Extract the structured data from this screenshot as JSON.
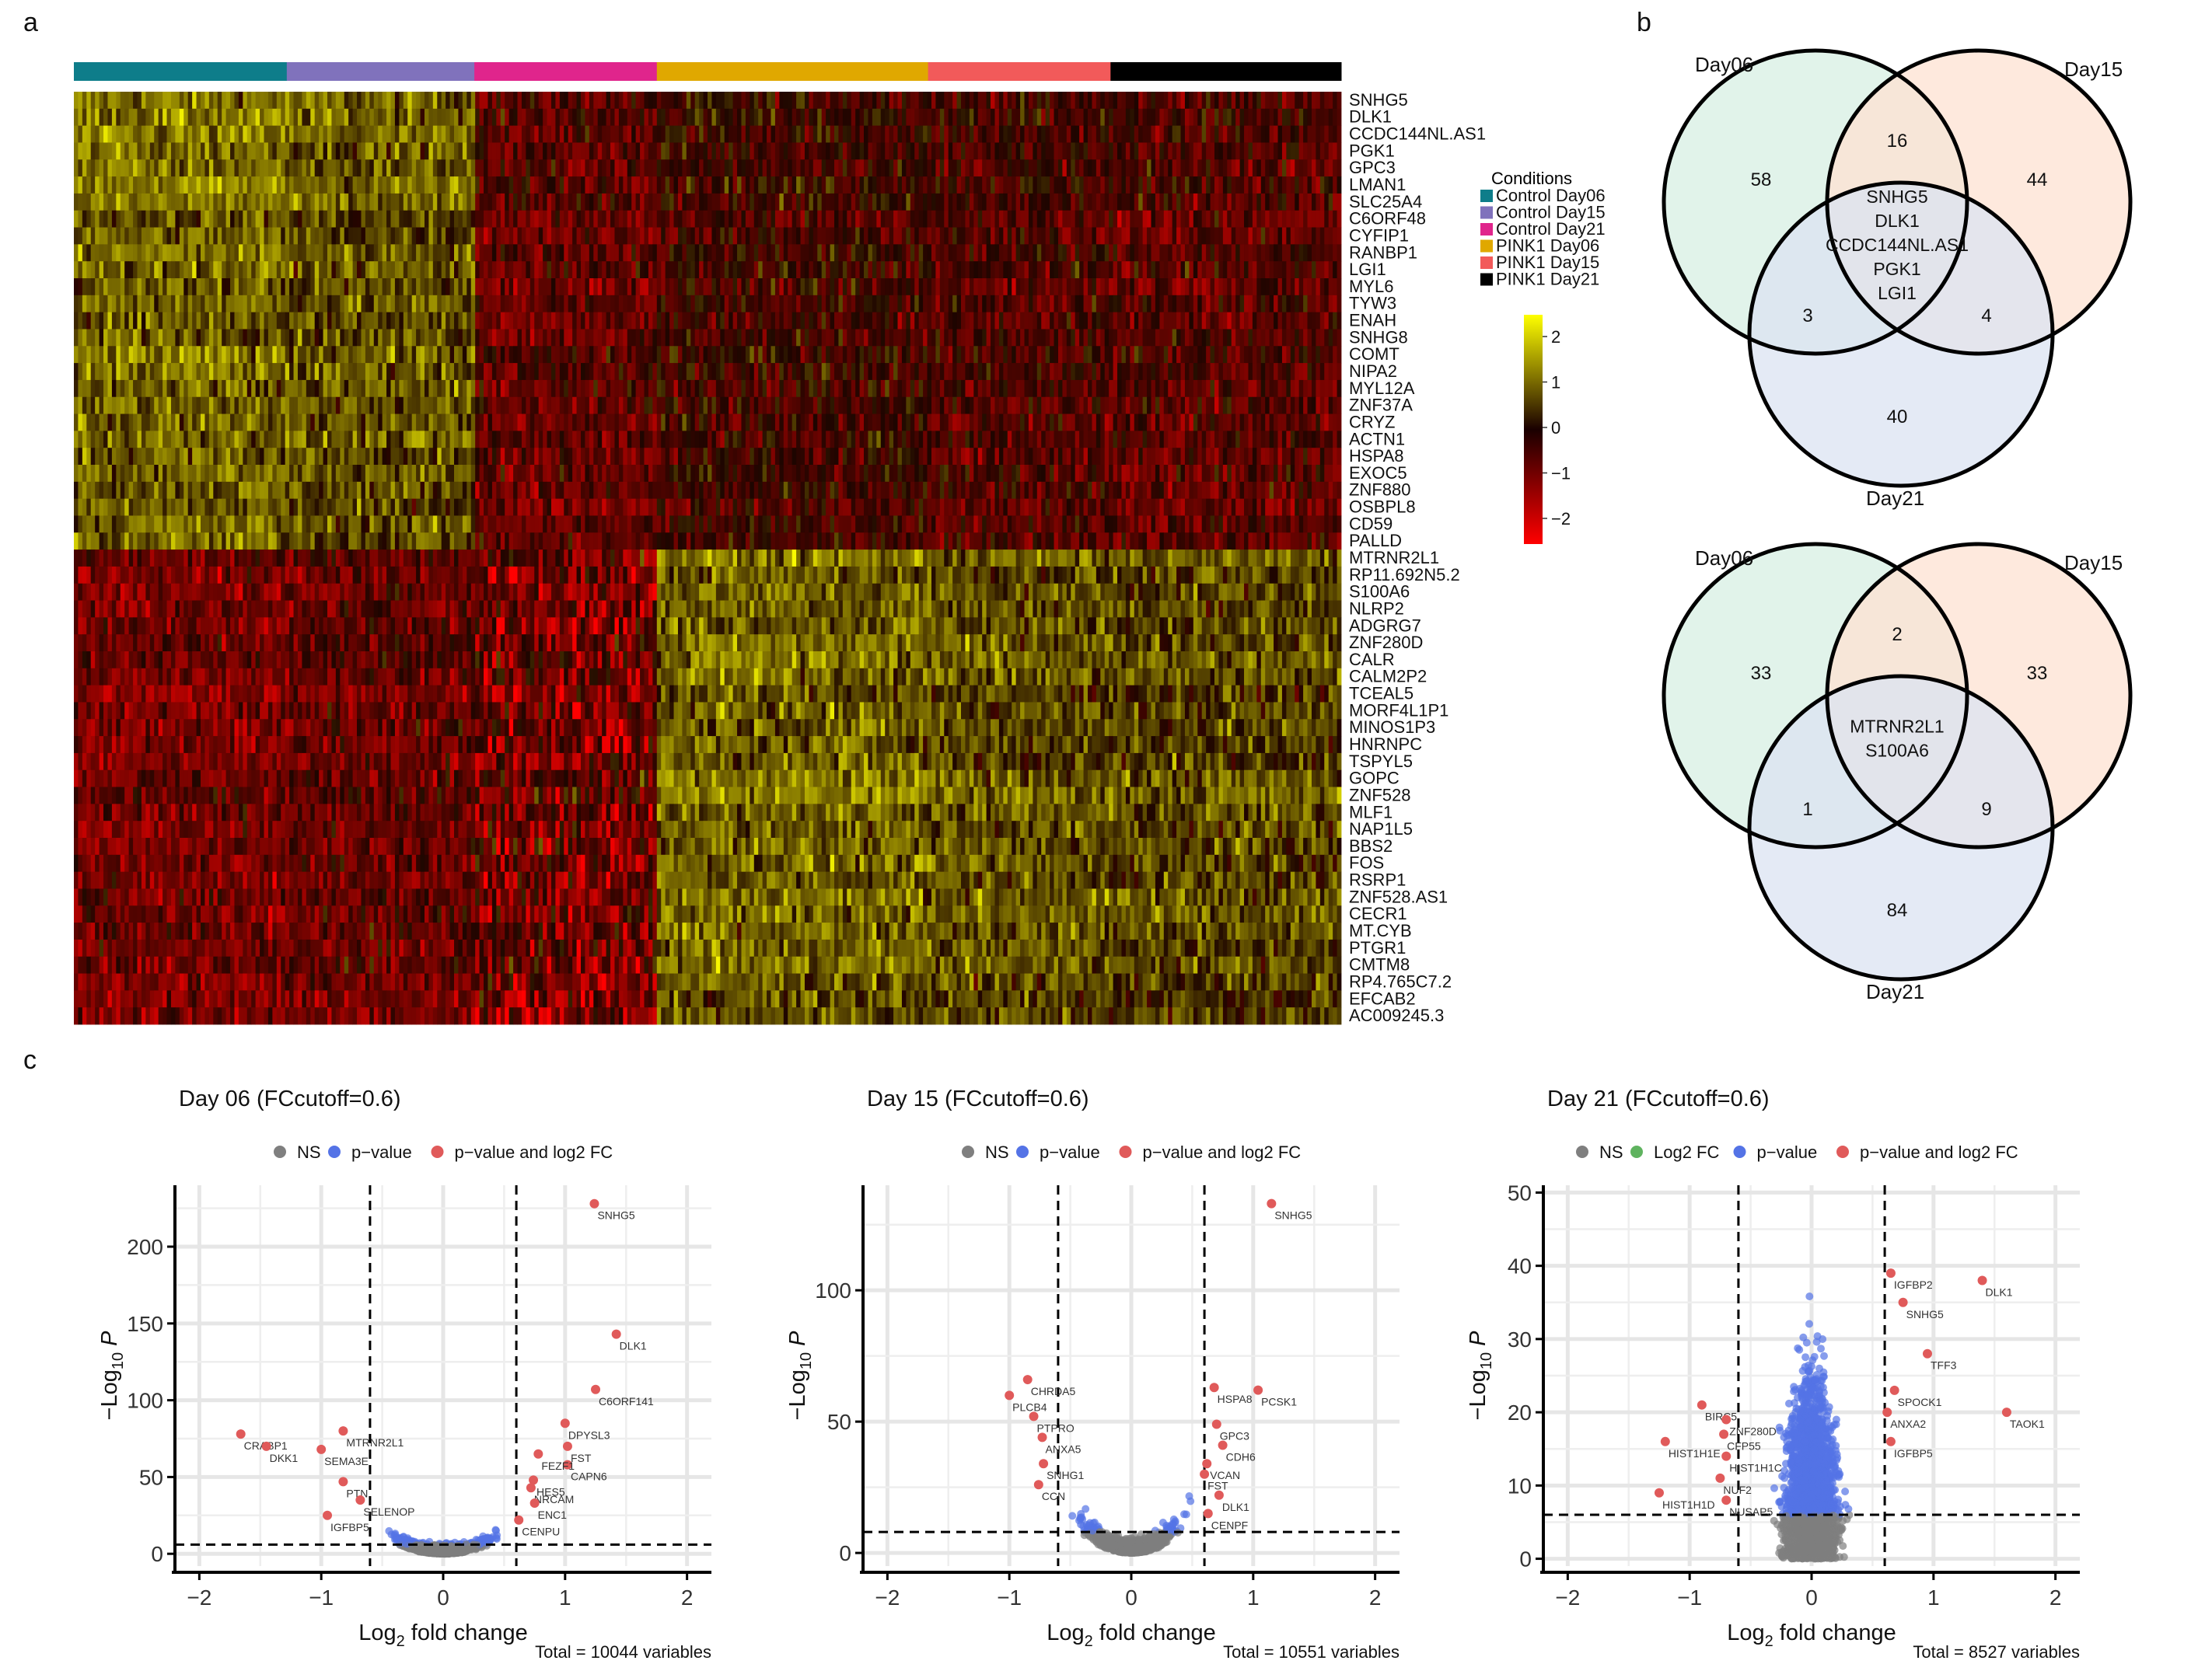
{
  "panels": {
    "a": "a",
    "b": "b",
    "c": "c"
  },
  "colors": {
    "conditions": [
      "#0e7d8a",
      "#8072bc",
      "#e0258c",
      "#e0a800",
      "#f25a5a",
      "#000000"
    ],
    "heat_low": "#ff0000",
    "heat_mid": "#1a0000",
    "heat_high": "#ffff00",
    "venn_day06": "#d7efe3",
    "venn_day15": "#fde2d2",
    "venn_day21": "#dbe3f2",
    "ns": "#7f7f7f",
    "pvalue": "#5473e6",
    "pvalue_fc": "#e05a5a",
    "log2fc": "#5fb35f"
  },
  "heatmap": {
    "legend_title": "Conditions",
    "conditions": [
      "Control Day06",
      "Control Day15",
      "Control Day21",
      "PINK1 Day06",
      "PINK1 Day15",
      "PINK1 Day21"
    ],
    "condition_fraction": [
      0.168,
      0.148,
      0.144,
      0.214,
      0.144,
      0.182
    ],
    "colorbar_ticks": [
      "2",
      "1",
      "0",
      "−1",
      "−2"
    ],
    "genes": [
      "SNHG5",
      "DLK1",
      "CCDC144NL.AS1",
      "PGK1",
      "GPC3",
      "LMAN1",
      "SLC25A4",
      "C6ORF48",
      "CYFIP1",
      "RANBP1",
      "LGI1",
      "MYL6",
      "TYW3",
      "ENAH",
      "SNHG8",
      "COMT",
      "NIPA2",
      "MYL12A",
      "ZNF37A",
      "CRYZ",
      "ACTN1",
      "HSPA8",
      "EXOC5",
      "ZNF880",
      "OSBPL8",
      "CD59",
      "PALLD",
      "MTRNR2L1",
      "RP11.692N5.2",
      "S100A6",
      "NLRP2",
      "ADGRG7",
      "ZNF280D",
      "CALR",
      "CALM2P2",
      "TCEAL5",
      "MORF4L1P1",
      "MINOS1P3",
      "HNRNPC",
      "TSPYL5",
      "GOPC",
      "ZNF528",
      "MLF1",
      "NAP1L5",
      "BBS2",
      "FOS",
      "RSRP1",
      "ZNF528.AS1",
      "CECR1",
      "MT.CYB",
      "PTGR1",
      "CMTM8",
      "RP4.765C7.2",
      "EFCAB2",
      "AC009245.3"
    ],
    "block_split": 27
  },
  "venn": [
    {
      "labels": [
        "Day06",
        "Day15",
        "Day21"
      ],
      "counts": {
        "only06": "58",
        "only15": "44",
        "only21": "40",
        "d06_15": "16",
        "d06_21": "3",
        "d15_21": "4"
      },
      "center": [
        "SNHG5",
        "DLK1",
        "CCDC144NL.AS1",
        "PGK1",
        "LGI1"
      ]
    },
    {
      "labels": [
        "Day06",
        "Day15",
        "Day21"
      ],
      "counts": {
        "only06": "33",
        "only15": "33",
        "only21": "84",
        "d06_15": "2",
        "d06_21": "1",
        "d15_21": "9"
      },
      "center": [
        "MTRNR2L1",
        "S100A6"
      ]
    }
  ],
  "chart_data": [
    {
      "type": "scatter",
      "title": "Day 06 (FCcutoff=0.6)",
      "xlabel": "Log2 fold change",
      "ylabel": "−Log10 P",
      "xlim": [
        -2.2,
        2.2
      ],
      "ylim": [
        -8,
        240
      ],
      "xticks": [
        -2,
        -1,
        0,
        1,
        2
      ],
      "yticks": [
        0,
        50,
        100,
        150,
        200
      ],
      "fc_cutoff": 0.6,
      "p_cutoff_y": 6,
      "legend": [
        "NS",
        "p−value",
        "p−value and log2 FC"
      ],
      "legend_keys": [
        "ns",
        "pvalue",
        "pvalue_fc"
      ],
      "total": "Total = 10044 variables",
      "labeled_points": [
        {
          "label": "SNHG5",
          "x": 1.24,
          "y": 228
        },
        {
          "label": "DLK1",
          "x": 1.42,
          "y": 143
        },
        {
          "label": "C6ORF141",
          "x": 1.25,
          "y": 107
        },
        {
          "label": "DPYSL3",
          "x": 1.0,
          "y": 85
        },
        {
          "label": "FST",
          "x": 1.02,
          "y": 70
        },
        {
          "label": "CAPN6",
          "x": 1.02,
          "y": 58
        },
        {
          "label": "FEZF1",
          "x": 0.78,
          "y": 65
        },
        {
          "label": "HES5",
          "x": 0.74,
          "y": 48
        },
        {
          "label": "NRCAM",
          "x": 0.72,
          "y": 43
        },
        {
          "label": "ENC1",
          "x": 0.75,
          "y": 33
        },
        {
          "label": "CENPU",
          "x": 0.62,
          "y": 22
        },
        {
          "label": "CRABP1",
          "x": -1.66,
          "y": 78
        },
        {
          "label": "DKK1",
          "x": -1.45,
          "y": 70
        },
        {
          "label": "MTRNR2L1",
          "x": -0.82,
          "y": 80
        },
        {
          "label": "SEMA3E",
          "x": -1.0,
          "y": 68
        },
        {
          "label": "PTN",
          "x": -0.82,
          "y": 47
        },
        {
          "label": "SELENOP",
          "x": -0.68,
          "y": 35
        },
        {
          "label": "IGFBP5",
          "x": -0.95,
          "y": 25
        }
      ]
    },
    {
      "type": "scatter",
      "title": "Day 15 (FCcutoff=0.6)",
      "xlabel": "Log2 fold change",
      "ylabel": "−Log10 P",
      "xlim": [
        -2.2,
        2.2
      ],
      "ylim": [
        -5,
        140
      ],
      "xticks": [
        -2,
        -1,
        0,
        1,
        2
      ],
      "yticks": [
        0,
        50,
        100
      ],
      "fc_cutoff": 0.6,
      "p_cutoff_y": 8,
      "legend": [
        "NS",
        "p−value",
        "p−value and log2 FC"
      ],
      "legend_keys": [
        "ns",
        "pvalue",
        "pvalue_fc"
      ],
      "total": "Total = 10551 variables",
      "labeled_points": [
        {
          "label": "SNHG5",
          "x": 1.15,
          "y": 133
        },
        {
          "label": "HSPA8",
          "x": 0.68,
          "y": 63
        },
        {
          "label": "PCSK1",
          "x": 1.04,
          "y": 62
        },
        {
          "label": "GPC3",
          "x": 0.7,
          "y": 49
        },
        {
          "label": "CDH6",
          "x": 0.75,
          "y": 41
        },
        {
          "label": "VCAN",
          "x": 0.62,
          "y": 34
        },
        {
          "label": "FST",
          "x": 0.6,
          "y": 30
        },
        {
          "label": "DLK1",
          "x": 0.72,
          "y": 22
        },
        {
          "label": "CENPF",
          "x": 0.63,
          "y": 15
        },
        {
          "label": "CHRDA5",
          "x": -0.85,
          "y": 66
        },
        {
          "label": "PLCB4",
          "x": -1.0,
          "y": 60
        },
        {
          "label": "PTPRO",
          "x": -0.8,
          "y": 52
        },
        {
          "label": "ANXA5",
          "x": -0.73,
          "y": 44
        },
        {
          "label": "SNHG1",
          "x": -0.72,
          "y": 34
        },
        {
          "label": "CCN",
          "x": -0.76,
          "y": 26
        }
      ]
    },
    {
      "type": "scatter",
      "title": "Day 21 (FCcutoff=0.6)",
      "xlabel": "Log2 fold change",
      "ylabel": "−Log10 P",
      "xlim": [
        -2.2,
        2.2
      ],
      "ylim": [
        -1,
        51
      ],
      "xticks": [
        -2,
        -1,
        0,
        1,
        2
      ],
      "yticks": [
        0,
        10,
        20,
        30,
        40,
        50
      ],
      "fc_cutoff": 0.6,
      "p_cutoff_y": 6,
      "legend": [
        "NS",
        "Log2 FC",
        "p−value",
        "p−value and log2 FC"
      ],
      "legend_keys": [
        "ns",
        "log2fc",
        "pvalue",
        "pvalue_fc"
      ],
      "total": "Total = 8527 variables",
      "labeled_points": [
        {
          "label": "IGFBP2",
          "x": 0.65,
          "y": 39
        },
        {
          "label": "DLK1",
          "x": 1.4,
          "y": 38
        },
        {
          "label": "SNHG5",
          "x": 0.75,
          "y": 35
        },
        {
          "label": "TFF3",
          "x": 0.95,
          "y": 28
        },
        {
          "label": "SPOCK1",
          "x": 0.68,
          "y": 23
        },
        {
          "label": "ANXA2",
          "x": 0.62,
          "y": 20
        },
        {
          "label": "TAOK1",
          "x": 1.6,
          "y": 20
        },
        {
          "label": "IGFBP5",
          "x": 0.65,
          "y": 16
        },
        {
          "label": "BIRC5",
          "x": -0.9,
          "y": 21
        },
        {
          "label": "ZNF280D",
          "x": -0.7,
          "y": 19
        },
        {
          "label": "CFP55",
          "x": -0.72,
          "y": 17
        },
        {
          "label": "HIST1H1E",
          "x": -1.2,
          "y": 16
        },
        {
          "label": "HIST1H1C",
          "x": -0.7,
          "y": 14
        },
        {
          "label": "NUF2",
          "x": -0.75,
          "y": 11
        },
        {
          "label": "HIST1H1D",
          "x": -1.25,
          "y": 9
        },
        {
          "label": "NUSAP5",
          "x": -0.7,
          "y": 8
        }
      ]
    }
  ]
}
